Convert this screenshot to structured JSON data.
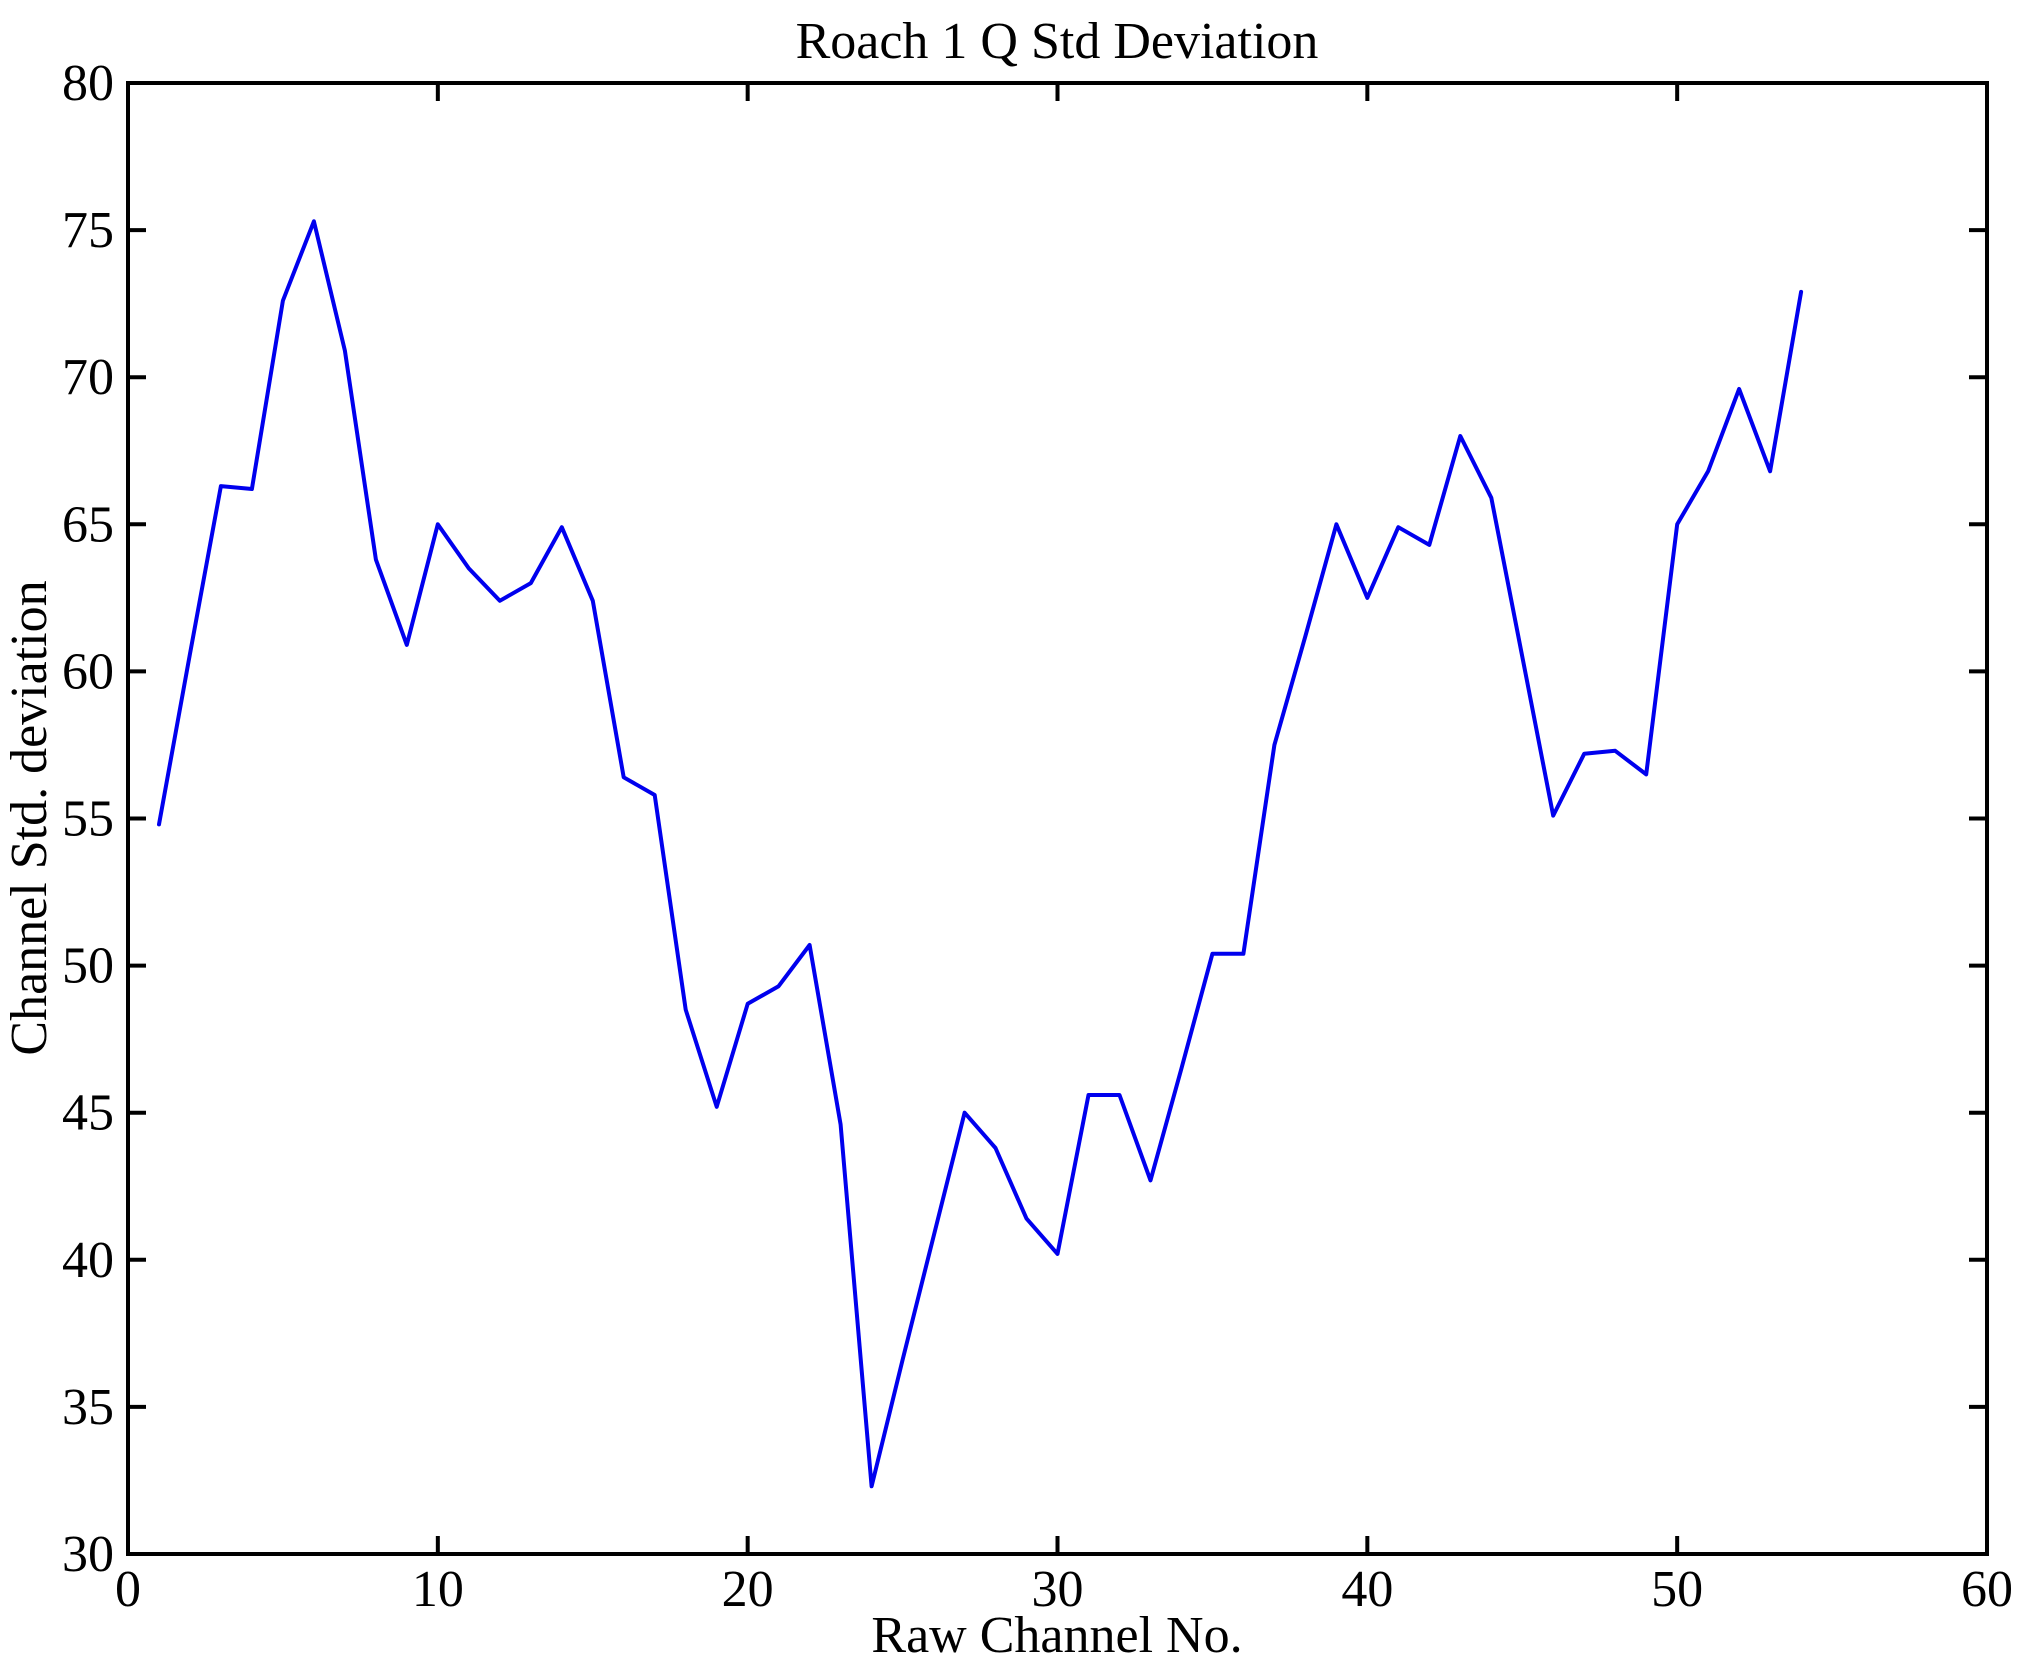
{
  "page": {
    "background": "#ffffff"
  },
  "chart_data": {
    "type": "line",
    "title": "Roach 1 Q Std Deviation",
    "xlabel": "Raw Channel No.",
    "ylabel": "Channel Std. deviation",
    "xlim": [
      0,
      60
    ],
    "ylim": [
      30,
      80
    ],
    "x_ticks": [
      "0",
      "10",
      "20",
      "30",
      "40",
      "50",
      "60"
    ],
    "y_ticks": [
      "30",
      "35",
      "40",
      "45",
      "50",
      "55",
      "60",
      "65",
      "70",
      "75",
      "80"
    ],
    "grid": false,
    "legend": null,
    "line_color": "#0000ee",
    "axis_color": "#000000",
    "series": [
      {
        "name": "Q std deviation",
        "x": [
          1,
          2,
          3,
          4,
          5,
          6,
          7,
          8,
          9,
          10,
          11,
          12,
          13,
          14,
          15,
          16,
          17,
          18,
          19,
          20,
          21,
          22,
          23,
          24,
          25,
          26,
          27,
          28,
          29,
          30,
          31,
          32,
          33,
          34,
          35,
          36,
          37,
          38,
          39,
          40,
          41,
          42,
          43,
          44,
          45,
          46,
          47,
          48,
          49,
          50,
          51,
          52,
          53,
          54
        ],
        "y": [
          54.8,
          60.6,
          66.3,
          66.2,
          72.6,
          75.3,
          70.9,
          63.8,
          60.9,
          65.0,
          63.5,
          62.4,
          63.0,
          64.9,
          62.4,
          56.4,
          55.8,
          48.5,
          45.2,
          48.7,
          49.3,
          50.7,
          44.6,
          32.3,
          36.6,
          40.8,
          45.0,
          43.8,
          41.4,
          40.2,
          45.6,
          45.6,
          42.7,
          46.5,
          50.4,
          50.4,
          57.5,
          61.2,
          65.0,
          62.5,
          64.9,
          64.3,
          68.0,
          65.9,
          60.5,
          55.1,
          57.2,
          57.3,
          56.5,
          65.0,
          66.8,
          69.6,
          66.8,
          72.9
        ]
      }
    ]
  }
}
